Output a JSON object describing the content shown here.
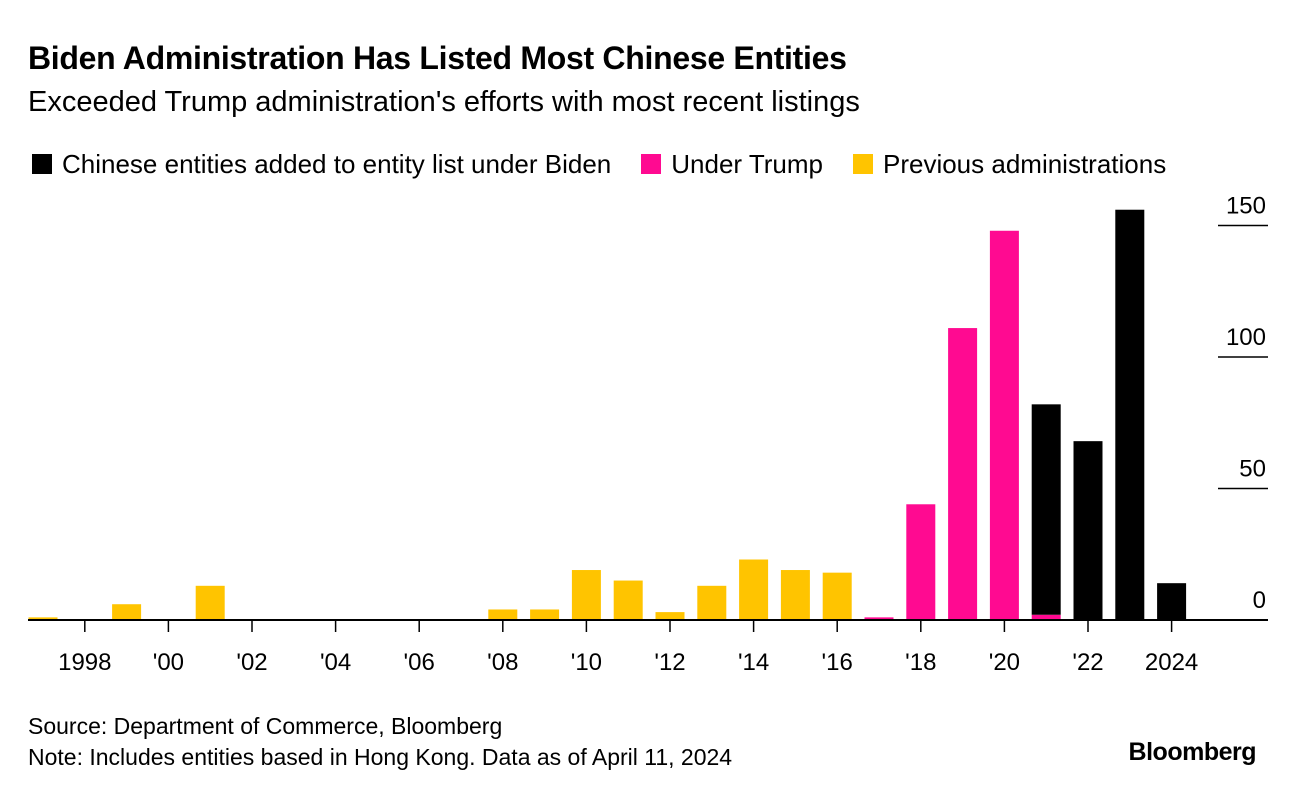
{
  "chart_data": {
    "type": "bar",
    "stacked": true,
    "title": "Biden Administration Has Listed Most Chinese Entities",
    "subtitle": "Exceeded Trump administration's efforts with most recent listings",
    "x": [
      1997,
      1998,
      1999,
      2000,
      2001,
      2002,
      2003,
      2004,
      2005,
      2006,
      2007,
      2008,
      2009,
      2010,
      2011,
      2012,
      2013,
      2014,
      2015,
      2016,
      2017,
      2018,
      2019,
      2020,
      2021,
      2022,
      2023,
      2024
    ],
    "series": [
      {
        "name": "Chinese entities added to entity list under Biden",
        "color": "#000000",
        "values": [
          0,
          0,
          0,
          0,
          0,
          0,
          0,
          0,
          0,
          0,
          0,
          0,
          0,
          0,
          0,
          0,
          0,
          0,
          0,
          0,
          0,
          0,
          0,
          0,
          80,
          68,
          156,
          14
        ]
      },
      {
        "name": "Under Trump",
        "color": "#ff0a91",
        "values": [
          0,
          0,
          0,
          0,
          0,
          0,
          0,
          0,
          0,
          0,
          0,
          0,
          0,
          0,
          0,
          0,
          0,
          0,
          0,
          0,
          1,
          44,
          111,
          148,
          2,
          0,
          0,
          0
        ]
      },
      {
        "name": "Previous administrations",
        "color": "#ffc400",
        "values": [
          1,
          0,
          6,
          0,
          13,
          0,
          0,
          0,
          0,
          0,
          0,
          4,
          4,
          19,
          15,
          3,
          13,
          23,
          19,
          18,
          0,
          0,
          0,
          0,
          0,
          0,
          0,
          0
        ]
      }
    ],
    "xticks": [
      {
        "year": 1998,
        "label": "1998"
      },
      {
        "year": 2000,
        "label": "'00"
      },
      {
        "year": 2002,
        "label": "'02"
      },
      {
        "year": 2004,
        "label": "'04"
      },
      {
        "year": 2006,
        "label": "'06"
      },
      {
        "year": 2008,
        "label": "'08"
      },
      {
        "year": 2010,
        "label": "'10"
      },
      {
        "year": 2012,
        "label": "'12"
      },
      {
        "year": 2014,
        "label": "'14"
      },
      {
        "year": 2016,
        "label": "'16"
      },
      {
        "year": 2018,
        "label": "'18"
      },
      {
        "year": 2020,
        "label": "'20"
      },
      {
        "year": 2022,
        "label": "'22"
      },
      {
        "year": 2024,
        "label": "2024"
      }
    ],
    "yticks": [
      0,
      50,
      100,
      150
    ],
    "ylim": [
      0,
      160
    ],
    "axis_position": "right",
    "legend_position": "top",
    "grid": false
  },
  "footer": {
    "source": "Source: Department of Commerce, Bloomberg",
    "note": "Note: Includes entities based in Hong Kong. Data as of April 11, 2024",
    "logo": "Bloomberg"
  }
}
